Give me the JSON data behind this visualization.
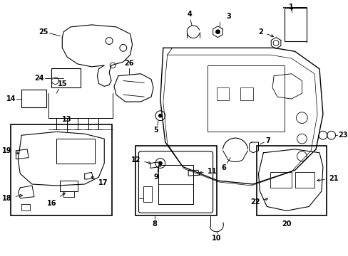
{
  "background_color": "#ffffff",
  "line_color": "#000000",
  "fig_width": 4.89,
  "fig_height": 3.6,
  "dpi": 100,
  "font_size": 7.0
}
